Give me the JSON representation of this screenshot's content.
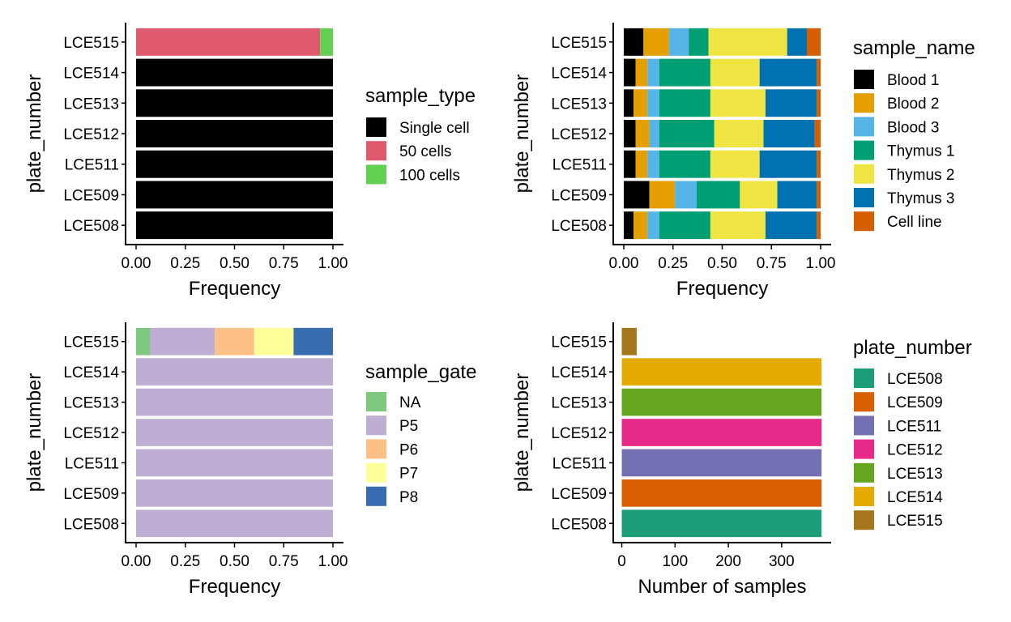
{
  "chart_data": [
    {
      "type": "bar",
      "orientation": "horizontal",
      "stacked": true,
      "categories": [
        "LCE515",
        "LCE514",
        "LCE513",
        "LCE512",
        "LCE511",
        "LCE509",
        "LCE508"
      ],
      "xlabel": "Frequency",
      "ylabel": "plate_number",
      "xlim": [
        0,
        1
      ],
      "xticks": [
        "0.00",
        "0.25",
        "0.50",
        "0.75",
        "1.00"
      ],
      "xtick_values": [
        0,
        0.25,
        0.5,
        0.75,
        1
      ],
      "legend_title": "sample_type",
      "legend_position": "right",
      "grid": false,
      "series": [
        {
          "name": "Single cell",
          "color": "#000000",
          "values": [
            0,
            1,
            1,
            1,
            1,
            1,
            1
          ]
        },
        {
          "name": "50 cells",
          "color": "#e05a6d",
          "values": [
            0.935,
            0,
            0,
            0,
            0,
            0,
            0
          ]
        },
        {
          "name": "100 cells",
          "color": "#62d052",
          "values": [
            0.065,
            0,
            0,
            0,
            0,
            0,
            0
          ]
        }
      ]
    },
    {
      "type": "bar",
      "orientation": "horizontal",
      "stacked": true,
      "categories": [
        "LCE515",
        "LCE514",
        "LCE513",
        "LCE512",
        "LCE511",
        "LCE509",
        "LCE508"
      ],
      "xlabel": "Frequency",
      "ylabel": "plate_number",
      "xlim": [
        0,
        1
      ],
      "xticks": [
        "0.00",
        "0.25",
        "0.50",
        "0.75",
        "1.00"
      ],
      "xtick_values": [
        0,
        0.25,
        0.5,
        0.75,
        1
      ],
      "legend_title": "sample_name",
      "legend_position": "right",
      "grid": false,
      "series": [
        {
          "name": "Blood 1",
          "color": "#000000",
          "values": [
            0.1,
            0.06,
            0.05,
            0.06,
            0.06,
            0.13,
            0.05
          ]
        },
        {
          "name": "Blood 2",
          "color": "#e69f00",
          "values": [
            0.13,
            0.06,
            0.07,
            0.07,
            0.06,
            0.13,
            0.07
          ]
        },
        {
          "name": "Blood 3",
          "color": "#56b4e9",
          "values": [
            0.1,
            0.06,
            0.06,
            0.05,
            0.06,
            0.11,
            0.06
          ]
        },
        {
          "name": "Thymus 1",
          "color": "#009e73",
          "values": [
            0.1,
            0.26,
            0.26,
            0.28,
            0.26,
            0.22,
            0.26
          ]
        },
        {
          "name": "Thymus 2",
          "color": "#f0e442",
          "values": [
            0.4,
            0.25,
            0.28,
            0.25,
            0.25,
            0.19,
            0.28
          ]
        },
        {
          "name": "Thymus 3",
          "color": "#0072b2",
          "values": [
            0.1,
            0.29,
            0.26,
            0.26,
            0.29,
            0.2,
            0.26
          ]
        },
        {
          "name": "Cell line",
          "color": "#d55e00",
          "values": [
            0.07,
            0.02,
            0.02,
            0.03,
            0.02,
            0.02,
            0.02
          ]
        }
      ]
    },
    {
      "type": "bar",
      "orientation": "horizontal",
      "stacked": true,
      "categories": [
        "LCE515",
        "LCE514",
        "LCE513",
        "LCE512",
        "LCE511",
        "LCE509",
        "LCE508"
      ],
      "xlabel": "Frequency",
      "ylabel": "plate_number",
      "xlim": [
        0,
        1
      ],
      "xticks": [
        "0.00",
        "0.25",
        "0.50",
        "0.75",
        "1.00"
      ],
      "xtick_values": [
        0,
        0.25,
        0.5,
        0.75,
        1
      ],
      "legend_title": "sample_gate",
      "legend_position": "right",
      "grid": false,
      "series": [
        {
          "name": "NA",
          "color": "#7fc97f",
          "values": [
            0.07,
            0,
            0,
            0,
            0,
            0,
            0
          ]
        },
        {
          "name": "P5",
          "color": "#beaed4",
          "values": [
            0.33,
            1,
            1,
            1,
            1,
            1,
            1
          ]
        },
        {
          "name": "P6",
          "color": "#fdc086",
          "values": [
            0.2,
            0,
            0,
            0,
            0,
            0,
            0
          ]
        },
        {
          "name": "P7",
          "color": "#ffff99",
          "values": [
            0.2,
            0,
            0,
            0,
            0,
            0,
            0
          ]
        },
        {
          "name": "P8",
          "color": "#386cb0",
          "values": [
            0.2,
            0,
            0,
            0,
            0,
            0,
            0
          ]
        }
      ]
    },
    {
      "type": "bar",
      "orientation": "horizontal",
      "stacked": false,
      "categories": [
        "LCE515",
        "LCE514",
        "LCE513",
        "LCE512",
        "LCE511",
        "LCE509",
        "LCE508"
      ],
      "values": [
        28,
        375,
        375,
        375,
        375,
        375,
        375
      ],
      "bar_colors": [
        "#a6761d",
        "#e6ab02",
        "#66a61e",
        "#e7298a",
        "#7570b3",
        "#d95f02",
        "#1b9e77"
      ],
      "xlabel": "Number of samples",
      "ylabel": "plate_number",
      "xlim": [
        -16,
        393
      ],
      "xticks": [
        "0",
        "100",
        "200",
        "300"
      ],
      "xtick_values": [
        0,
        100,
        200,
        300
      ],
      "legend_title": "plate_number",
      "legend_position": "right",
      "grid": false,
      "legend": [
        {
          "name": "LCE508",
          "color": "#1b9e77"
        },
        {
          "name": "LCE509",
          "color": "#d95f02"
        },
        {
          "name": "LCE511",
          "color": "#7570b3"
        },
        {
          "name": "LCE512",
          "color": "#e7298a"
        },
        {
          "name": "LCE513",
          "color": "#66a61e"
        },
        {
          "name": "LCE514",
          "color": "#e6ab02"
        },
        {
          "name": "LCE515",
          "color": "#a6761d"
        }
      ]
    }
  ]
}
